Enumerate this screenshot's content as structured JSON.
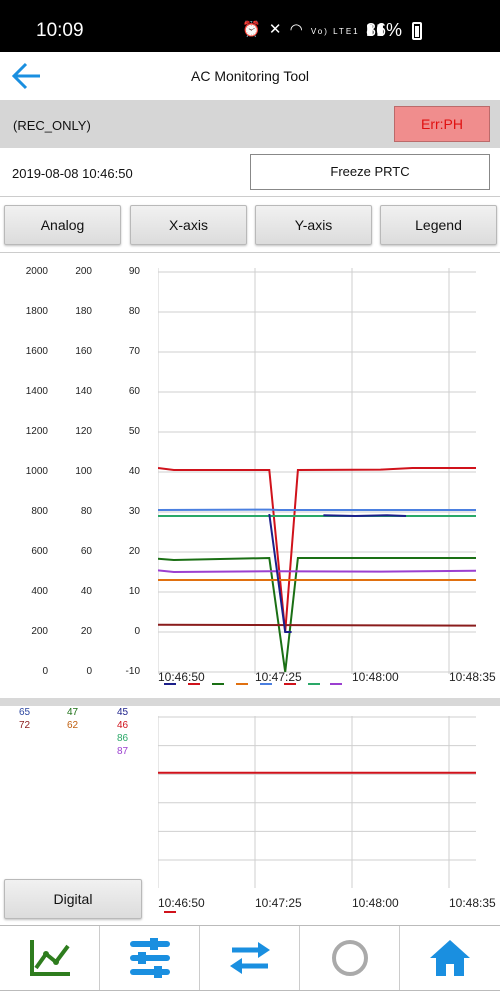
{
  "status_bar": {
    "time": "10:09",
    "network": "Vo) LTE1",
    "battery": "86%"
  },
  "app": {
    "title": "AC Monitoring Tool"
  },
  "record": {
    "mode": "(REC_ONLY)",
    "error": "Err:PH"
  },
  "timestamp": "2019-08-08 10:46:50",
  "freeze_label": "Freeze PRTC",
  "buttons": {
    "analog": "Analog",
    "xaxis": "X-axis",
    "yaxis": "Y-axis",
    "legend": "Legend",
    "digital": "Digital"
  },
  "colors": {
    "accent_blue": "#1a8fe0",
    "err_bg": "#f08d8d",
    "err_text": "#e01010",
    "nav_green": "#2e7d1e"
  },
  "chart_data": [
    {
      "type": "line",
      "title": "",
      "x": [
        "10:46:50",
        "10:47:25",
        "10:48:00",
        "10:48:35"
      ],
      "y_axes": [
        {
          "ticks": [
            2000,
            1800,
            1600,
            1400,
            1200,
            1000,
            800,
            600,
            400,
            200,
            0
          ],
          "ylim": [
            0,
            2000
          ]
        },
        {
          "ticks": [
            200,
            180,
            160,
            140,
            120,
            100,
            80,
            60,
            40,
            20,
            0
          ],
          "ylim": [
            0,
            200
          ]
        },
        {
          "ticks": [
            90,
            80,
            70,
            60,
            50,
            40,
            30,
            20,
            10,
            0,
            -10
          ],
          "ylim": [
            -10,
            90
          ]
        }
      ],
      "grid": true,
      "series": [
        {
          "color": "#d0121b",
          "points": [
            [
              0,
              41.0
            ],
            [
              0.05,
              40.5
            ],
            [
              0.35,
              40.5
            ],
            [
              0.4,
              0
            ],
            [
              0.44,
              40.5
            ],
            [
              0.7,
              40.6
            ],
            [
              0.8,
              41.0
            ],
            [
              1.0,
              41.0
            ]
          ]
        },
        {
          "color": "#4a7fe0",
          "points": [
            [
              0,
              30.5
            ],
            [
              0.35,
              30.6
            ],
            [
              0.38,
              30.5
            ],
            [
              1.0,
              30.5
            ]
          ]
        },
        {
          "color": "#2aa868",
          "points": [
            [
              0,
              29.0
            ],
            [
              1.0,
              29.0
            ]
          ]
        },
        {
          "color": "#1b1f8a",
          "points": [
            [
              0.52,
              29.2
            ],
            [
              0.62,
              29.0
            ],
            [
              0.72,
              29.2
            ],
            [
              0.78,
              29.0
            ]
          ]
        },
        {
          "color": "#1a6f14",
          "points": [
            [
              0,
              18.3
            ],
            [
              0.05,
              18.0
            ],
            [
              0.35,
              18.5
            ],
            [
              0.4,
              -10
            ],
            [
              0.44,
              18.5
            ],
            [
              1.0,
              18.5
            ]
          ]
        },
        {
          "color": "#9b3fd0",
          "points": [
            [
              0,
              15.4
            ],
            [
              0.05,
              15.0
            ],
            [
              0.35,
              15.2
            ],
            [
              0.7,
              15.1
            ],
            [
              1.0,
              15.3
            ]
          ]
        },
        {
          "color": "#e07010",
          "points": [
            [
              0,
              13.0
            ],
            [
              1.0,
              13.0
            ]
          ]
        },
        {
          "color": "#8a1c1c",
          "points": [
            [
              0,
              1.8
            ],
            [
              1.0,
              1.6
            ]
          ]
        },
        {
          "color": "#1b1f8a",
          "points": [
            [
              0.35,
              29.5
            ],
            [
              0.4,
              0
            ],
            [
              0.42,
              0
            ]
          ]
        }
      ]
    },
    {
      "type": "line",
      "title": "",
      "x": [
        "10:46:50",
        "10:47:25",
        "10:48:00",
        "10:48:35"
      ],
      "series": [
        {
          "color": "#d0121b",
          "points": [
            [
              0,
              0.33
            ],
            [
              1.0,
              0.33
            ]
          ]
        }
      ]
    }
  ],
  "digital_values": [
    {
      "text": "65",
      "color": "#2b46a0"
    },
    {
      "text": "72",
      "color": "#8a1c1c"
    },
    {
      "text": "47",
      "color": "#1a6f14"
    },
    {
      "text": "62",
      "color": "#c06010"
    },
    {
      "text": "45",
      "color": "#1b1f8a"
    },
    {
      "text": "46",
      "color": "#d0121b"
    },
    {
      "text": "86",
      "color": "#2aa868"
    },
    {
      "text": "87",
      "color": "#9b3fd0"
    }
  ],
  "nav": [
    "chart-icon",
    "sliders-icon",
    "swap-icon",
    "circle-icon",
    "home-icon"
  ]
}
